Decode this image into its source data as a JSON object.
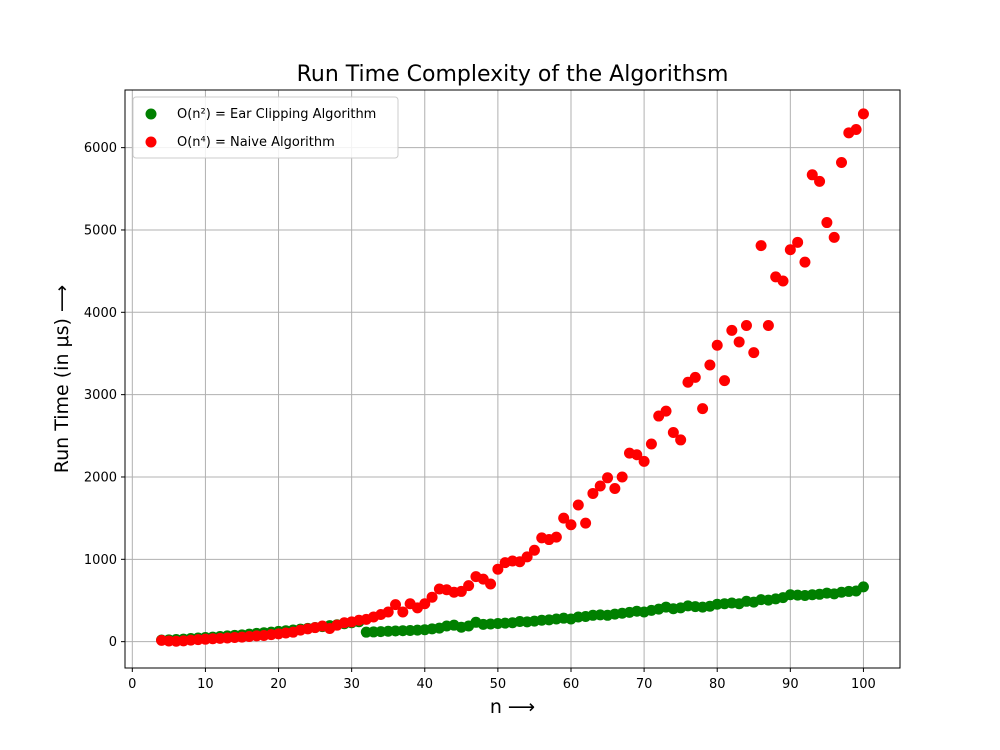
{
  "chart_data": {
    "type": "scatter",
    "title": "Run Time Complexity of the Algorithsm",
    "xlabel": "n ⟶",
    "ylabel": "Run Time (in μs) ⟶",
    "xlim": [
      -1,
      105
    ],
    "ylim": [
      -320,
      6700
    ],
    "xticks": [
      0,
      10,
      20,
      30,
      40,
      50,
      60,
      70,
      80,
      90,
      100
    ],
    "yticks": [
      0,
      1000,
      2000,
      3000,
      4000,
      5000,
      6000
    ],
    "grid": true,
    "legend_position": "top-left",
    "series": [
      {
        "name": "O(n²) = Ear Clipping Algorithm",
        "color": "#008000",
        "points": [
          [
            4,
            20
          ],
          [
            5,
            22
          ],
          [
            6,
            26
          ],
          [
            7,
            30
          ],
          [
            8,
            38
          ],
          [
            9,
            45
          ],
          [
            10,
            50
          ],
          [
            11,
            55
          ],
          [
            12,
            62
          ],
          [
            13,
            70
          ],
          [
            14,
            76
          ],
          [
            15,
            83
          ],
          [
            16,
            92
          ],
          [
            17,
            100
          ],
          [
            18,
            108
          ],
          [
            19,
            115
          ],
          [
            20,
            125
          ],
          [
            21,
            133
          ],
          [
            22,
            142
          ],
          [
            23,
            152
          ],
          [
            24,
            162
          ],
          [
            25,
            172
          ],
          [
            26,
            183
          ],
          [
            27,
            195
          ],
          [
            28,
            205
          ],
          [
            29,
            218
          ],
          [
            30,
            230
          ],
          [
            31,
            242
          ],
          [
            32,
            115
          ],
          [
            33,
            118
          ],
          [
            34,
            122
          ],
          [
            35,
            126
          ],
          [
            36,
            130
          ],
          [
            37,
            133
          ],
          [
            38,
            136
          ],
          [
            39,
            140
          ],
          [
            40,
            145
          ],
          [
            41,
            155
          ],
          [
            42,
            165
          ],
          [
            43,
            190
          ],
          [
            44,
            200
          ],
          [
            45,
            175
          ],
          [
            46,
            190
          ],
          [
            47,
            235
          ],
          [
            48,
            210
          ],
          [
            49,
            215
          ],
          [
            50,
            220
          ],
          [
            51,
            225
          ],
          [
            52,
            230
          ],
          [
            53,
            245
          ],
          [
            54,
            240
          ],
          [
            55,
            250
          ],
          [
            56,
            260
          ],
          [
            57,
            265
          ],
          [
            58,
            275
          ],
          [
            59,
            285
          ],
          [
            60,
            275
          ],
          [
            61,
            300
          ],
          [
            62,
            305
          ],
          [
            63,
            320
          ],
          [
            64,
            325
          ],
          [
            65,
            320
          ],
          [
            66,
            335
          ],
          [
            67,
            345
          ],
          [
            68,
            355
          ],
          [
            69,
            370
          ],
          [
            70,
            360
          ],
          [
            71,
            380
          ],
          [
            72,
            395
          ],
          [
            73,
            420
          ],
          [
            74,
            400
          ],
          [
            75,
            410
          ],
          [
            76,
            435
          ],
          [
            77,
            425
          ],
          [
            78,
            420
          ],
          [
            79,
            430
          ],
          [
            80,
            455
          ],
          [
            81,
            460
          ],
          [
            82,
            470
          ],
          [
            83,
            460
          ],
          [
            84,
            490
          ],
          [
            85,
            480
          ],
          [
            86,
            510
          ],
          [
            87,
            505
          ],
          [
            88,
            520
          ],
          [
            89,
            535
          ],
          [
            90,
            570
          ],
          [
            91,
            565
          ],
          [
            92,
            560
          ],
          [
            93,
            570
          ],
          [
            94,
            575
          ],
          [
            95,
            590
          ],
          [
            96,
            580
          ],
          [
            97,
            600
          ],
          [
            98,
            610
          ],
          [
            99,
            615
          ],
          [
            100,
            665
          ]
        ]
      },
      {
        "name": "O(n⁴) = Naive Algorithm",
        "color": "#ff0000",
        "points": [
          [
            4,
            15
          ],
          [
            5,
            8
          ],
          [
            6,
            5
          ],
          [
            7,
            10
          ],
          [
            8,
            18
          ],
          [
            9,
            25
          ],
          [
            10,
            30
          ],
          [
            11,
            35
          ],
          [
            12,
            40
          ],
          [
            13,
            45
          ],
          [
            14,
            50
          ],
          [
            15,
            55
          ],
          [
            16,
            62
          ],
          [
            17,
            70
          ],
          [
            18,
            75
          ],
          [
            19,
            85
          ],
          [
            20,
            95
          ],
          [
            21,
            105
          ],
          [
            22,
            115
          ],
          [
            23,
            140
          ],
          [
            24,
            155
          ],
          [
            25,
            170
          ],
          [
            26,
            190
          ],
          [
            27,
            160
          ],
          [
            28,
            200
          ],
          [
            29,
            230
          ],
          [
            30,
            240
          ],
          [
            31,
            260
          ],
          [
            32,
            270
          ],
          [
            33,
            300
          ],
          [
            34,
            330
          ],
          [
            35,
            360
          ],
          [
            36,
            450
          ],
          [
            37,
            360
          ],
          [
            38,
            460
          ],
          [
            39,
            410
          ],
          [
            40,
            460
          ],
          [
            41,
            540
          ],
          [
            42,
            640
          ],
          [
            43,
            630
          ],
          [
            44,
            600
          ],
          [
            45,
            610
          ],
          [
            46,
            680
          ],
          [
            47,
            790
          ],
          [
            48,
            760
          ],
          [
            49,
            700
          ],
          [
            50,
            880
          ],
          [
            51,
            960
          ],
          [
            52,
            980
          ],
          [
            53,
            970
          ],
          [
            54,
            1030
          ],
          [
            55,
            1110
          ],
          [
            56,
            1260
          ],
          [
            57,
            1240
          ],
          [
            58,
            1270
          ],
          [
            59,
            1500
          ],
          [
            60,
            1420
          ],
          [
            61,
            1660
          ],
          [
            62,
            1440
          ],
          [
            63,
            1800
          ],
          [
            64,
            1890
          ],
          [
            65,
            1990
          ],
          [
            66,
            1860
          ],
          [
            67,
            2000
          ],
          [
            68,
            2290
          ],
          [
            69,
            2270
          ],
          [
            70,
            2190
          ],
          [
            71,
            2400
          ],
          [
            72,
            2740
          ],
          [
            73,
            2800
          ],
          [
            74,
            2540
          ],
          [
            75,
            2450
          ],
          [
            76,
            3150
          ],
          [
            77,
            3210
          ],
          [
            78,
            2830
          ],
          [
            79,
            3360
          ],
          [
            80,
            3600
          ],
          [
            81,
            3170
          ],
          [
            82,
            3780
          ],
          [
            83,
            3640
          ],
          [
            84,
            3840
          ],
          [
            85,
            3510
          ],
          [
            86,
            4810
          ],
          [
            87,
            3840
          ],
          [
            88,
            4430
          ],
          [
            89,
            4380
          ],
          [
            90,
            4760
          ],
          [
            91,
            4850
          ],
          [
            92,
            4610
          ],
          [
            93,
            5670
          ],
          [
            94,
            5590
          ],
          [
            95,
            5090
          ],
          [
            96,
            4910
          ],
          [
            97,
            5820
          ],
          [
            98,
            6180
          ],
          [
            99,
            6220
          ],
          [
            100,
            6410
          ]
        ]
      }
    ]
  }
}
